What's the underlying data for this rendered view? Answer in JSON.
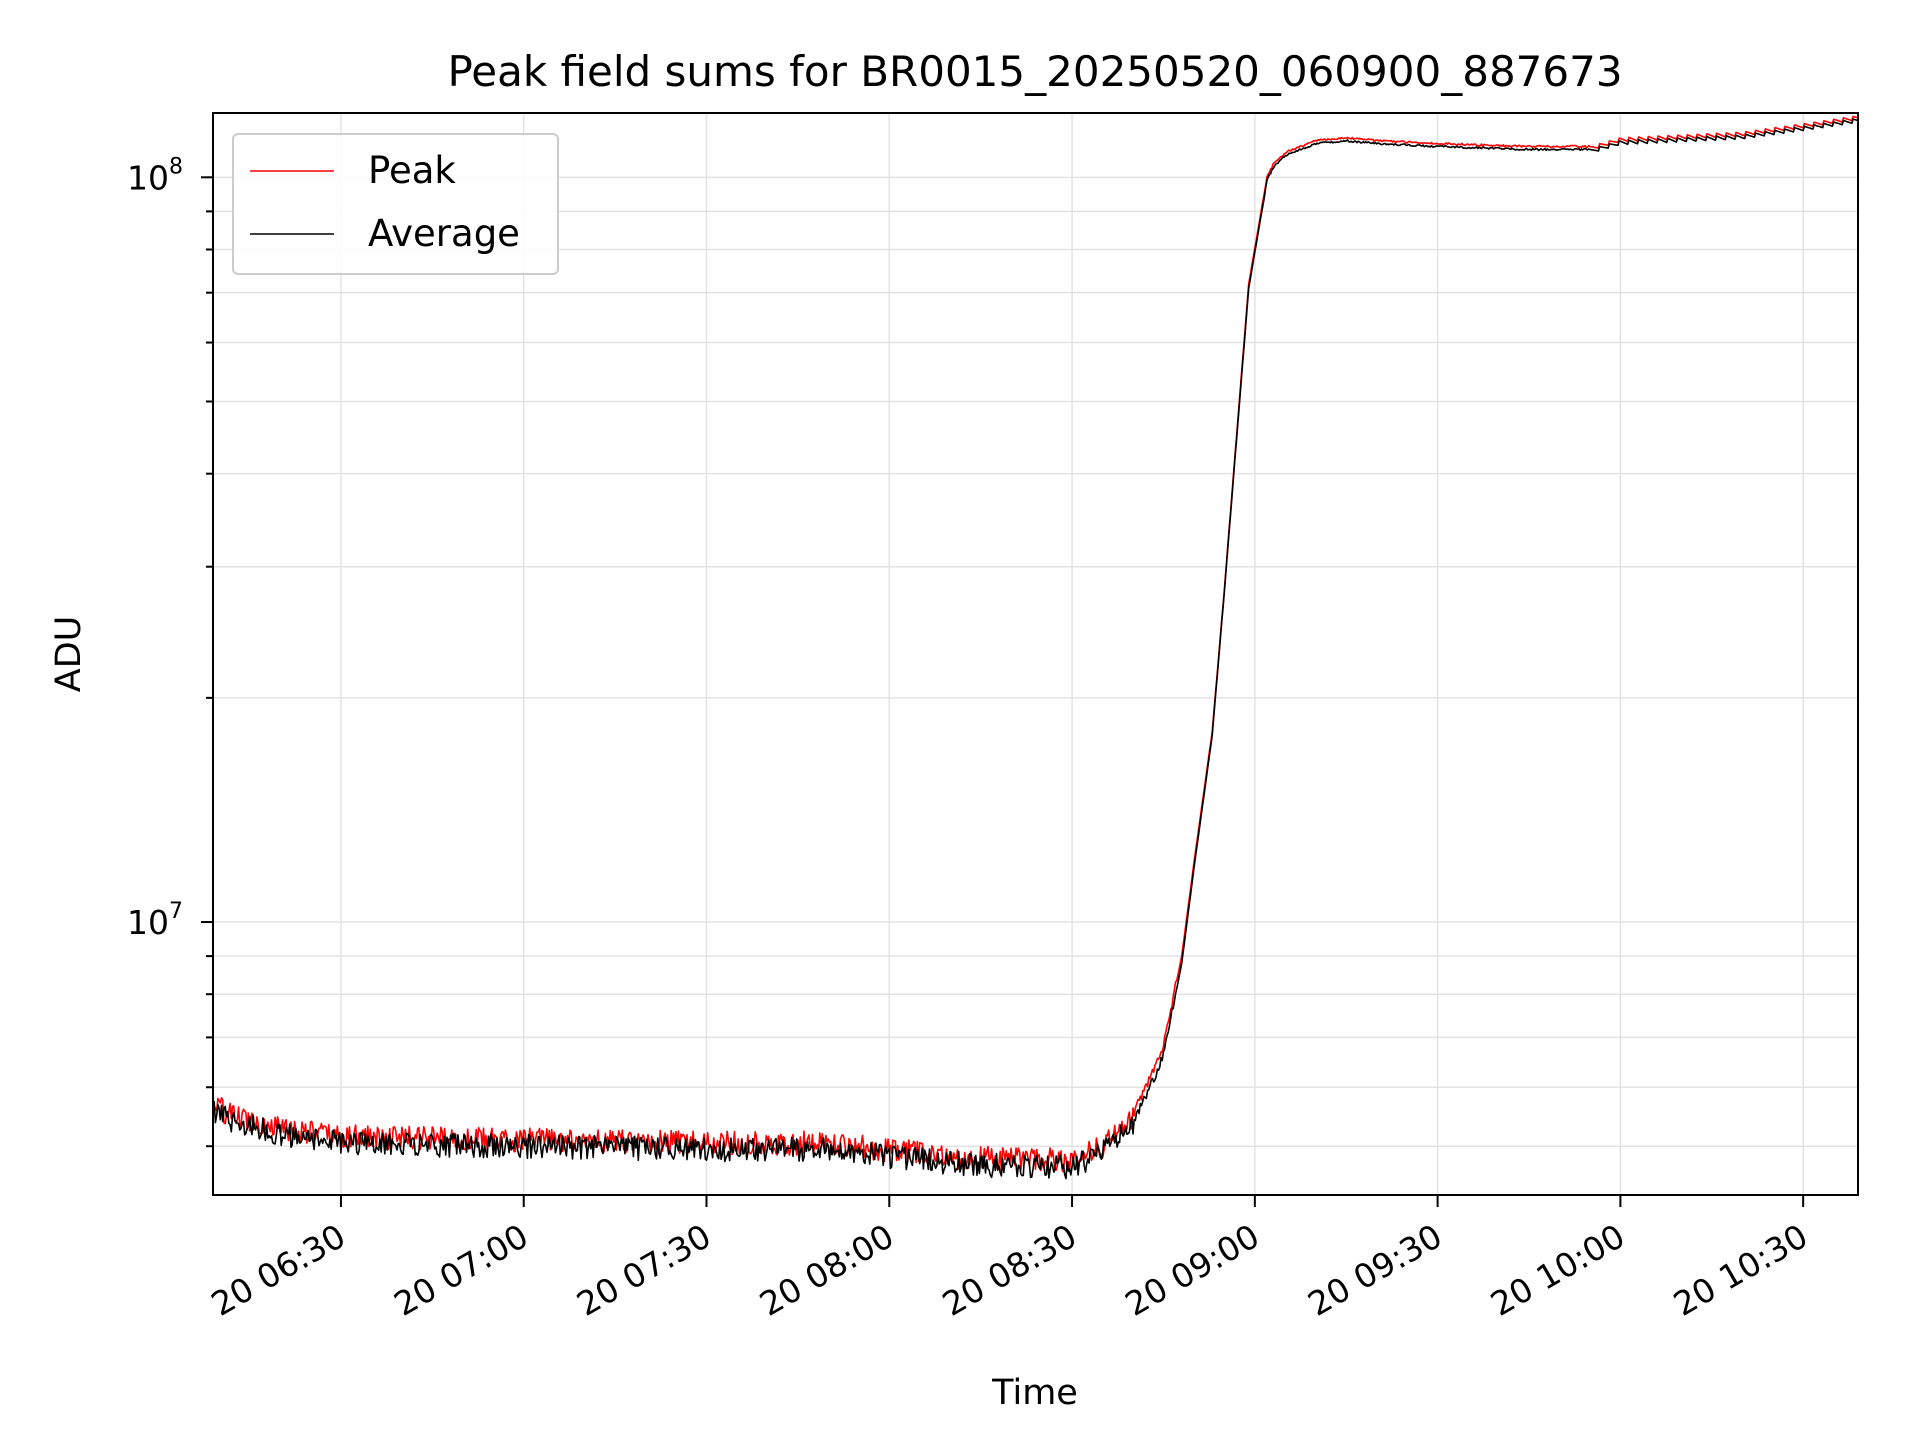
{
  "chart_data": {
    "type": "line",
    "title": "Peak field sums for BR0015_20250520_060900_887673",
    "xlabel": "Time",
    "ylabel": "ADU",
    "x_axis": {
      "kind": "time",
      "range": [
        "2025-05-20 06:09",
        "2025-05-20 10:39"
      ],
      "ticks": [
        "20 06:30",
        "20 07:00",
        "20 07:30",
        "20 08:00",
        "20 08:30",
        "20 09:00",
        "20 09:30",
        "20 10:00",
        "20 10:30"
      ]
    },
    "y_axis": {
      "scale": "log",
      "range": [
        4300000,
        122000000
      ],
      "major_ticks": [
        {
          "value": 10000000,
          "base": "10",
          "exp": "7"
        },
        {
          "value": 100000000,
          "base": "10",
          "exp": "8"
        }
      ]
    },
    "grid": true,
    "legend_position": "top-left",
    "series": [
      {
        "name": "Peak",
        "color": "#ff0000",
        "x": [
          "2025-05-20 06:09",
          "2025-05-20 06:12",
          "2025-05-20 06:20",
          "2025-05-20 06:30",
          "2025-05-20 07:00",
          "2025-05-20 07:30",
          "2025-05-20 07:50",
          "2025-05-20 08:00",
          "2025-05-20 08:10",
          "2025-05-20 08:20",
          "2025-05-20 08:30",
          "2025-05-20 08:35",
          "2025-05-20 08:40",
          "2025-05-20 08:45",
          "2025-05-20 08:48",
          "2025-05-20 08:50",
          "2025-05-20 08:53",
          "2025-05-20 08:55",
          "2025-05-20 08:57",
          "2025-05-20 08:59",
          "2025-05-20 09:02",
          "2025-05-20 09:03",
          "2025-05-20 09:05",
          "2025-05-20 09:10",
          "2025-05-20 09:15",
          "2025-05-20 09:20",
          "2025-05-20 09:30",
          "2025-05-20 09:45",
          "2025-05-20 09:55",
          "2025-05-20 10:00",
          "2025-05-20 10:10",
          "2025-05-20 10:20",
          "2025-05-20 10:30",
          "2025-05-20 10:39"
        ],
        "y": [
          5700000,
          5500000,
          5300000,
          5150000,
          5100000,
          5050000,
          5050000,
          4950000,
          4850000,
          4800000,
          4800000,
          5000000,
          5500000,
          6800000,
          9000000,
          12000000,
          18000000,
          28000000,
          45000000,
          72000000,
          100000000,
          104000000,
          108000000,
          112000000,
          113000000,
          112000000,
          111000000,
          110000000,
          110000000,
          113000000,
          114000000,
          115000000,
          118000000,
          121000000
        ]
      },
      {
        "name": "Average",
        "color": "#000000",
        "x": [
          "2025-05-20 06:09",
          "2025-05-20 06:12",
          "2025-05-20 06:20",
          "2025-05-20 06:30",
          "2025-05-20 07:00",
          "2025-05-20 07:30",
          "2025-05-20 07:50",
          "2025-05-20 08:00",
          "2025-05-20 08:10",
          "2025-05-20 08:20",
          "2025-05-20 08:30",
          "2025-05-20 08:35",
          "2025-05-20 08:40",
          "2025-05-20 08:45",
          "2025-05-20 08:48",
          "2025-05-20 08:50",
          "2025-05-20 08:53",
          "2025-05-20 08:55",
          "2025-05-20 08:57",
          "2025-05-20 08:59",
          "2025-05-20 09:02",
          "2025-05-20 09:03",
          "2025-05-20 09:05",
          "2025-05-20 09:10",
          "2025-05-20 09:15",
          "2025-05-20 09:20",
          "2025-05-20 09:30",
          "2025-05-20 09:45",
          "2025-05-20 09:55",
          "2025-05-20 10:00",
          "2025-05-20 10:10",
          "2025-05-20 10:20",
          "2025-05-20 10:30",
          "2025-05-20 10:39"
        ],
        "y": [
          5600000,
          5400000,
          5200000,
          5050000,
          5000000,
          4950000,
          4950000,
          4850000,
          4750000,
          4700000,
          4700000,
          4900000,
          5350000,
          6600000,
          8800000,
          11800000,
          17800000,
          27800000,
          44500000,
          71000000,
          99000000,
          103000000,
          107000000,
          111000000,
          112000000,
          111000000,
          110000000,
          109000000,
          109000000,
          112000000,
          113000000,
          114000000,
          117000000,
          120000000
        ]
      }
    ]
  }
}
